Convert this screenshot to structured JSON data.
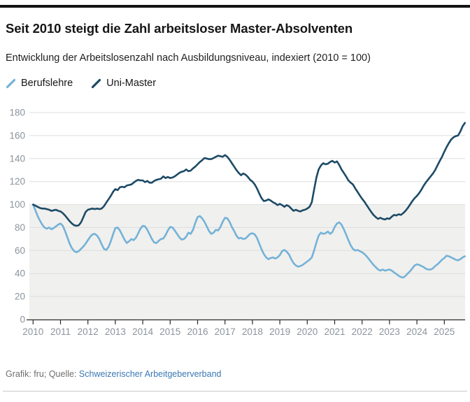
{
  "header": {
    "title": "Seit 2010 steigt die Zahl arbeitsloser Master-Absolventen",
    "subtitle": "Entwicklung der Arbeitslosenzahl nach Ausbildungsniveau, indexiert (2010 = 100)"
  },
  "legend": [
    {
      "label": "Berufslehre",
      "color": "#74b2d8"
    },
    {
      "label": "Uni-Master",
      "color": "#1d4a66"
    }
  ],
  "footer": {
    "credit": "Grafik: fru; Quelle: ",
    "source_link": "Schweizerischer Arbeitgeberverband",
    "link_color": "#3b78b5"
  },
  "chart_data": {
    "type": "line",
    "title": "Entwicklung der Arbeitslosenzahl nach Ausbildungsniveau, indexiert (2010 = 100)",
    "xlabel": "",
    "ylabel": "",
    "x_unit": "months since 2010-01",
    "x_ticks": [
      2010,
      2011,
      2012,
      2013,
      2014,
      2015,
      2016,
      2017,
      2018,
      2019,
      2020,
      2021,
      2022,
      2023,
      2024,
      2025
    ],
    "ylim": [
      0,
      180
    ],
    "y_ticks": [
      0,
      20,
      40,
      60,
      80,
      100,
      120,
      140,
      160,
      180
    ],
    "grid": true,
    "grid_color": "#dedede",
    "axis_color": "#2a2a2a",
    "band": {
      "from": 0,
      "to": 100,
      "color": "#f0f0ee"
    },
    "legend_position": "top-left",
    "series": [
      {
        "name": "Berufslehre",
        "color": "#74b2d8",
        "values": [
          100,
          95,
          90,
          86,
          82.5,
          80,
          79,
          80,
          78.5,
          79.5,
          81,
          82.5,
          83.5,
          81.5,
          77,
          71.5,
          66,
          62,
          59.5,
          58.5,
          59.5,
          61.5,
          63.5,
          66,
          69,
          72,
          74,
          74.5,
          73,
          70,
          65.5,
          61.5,
          60.5,
          63,
          68,
          74,
          79.5,
          80,
          77.5,
          73.5,
          69.5,
          66.5,
          68,
          70,
          69,
          71,
          75,
          79,
          81.5,
          81,
          78,
          74,
          70,
          67,
          66.5,
          68.5,
          70,
          70.5,
          73.5,
          77.5,
          80.5,
          80,
          77.5,
          74.5,
          71.5,
          69.5,
          70,
          72,
          75.5,
          74.5,
          78,
          84,
          89,
          90,
          88,
          85,
          81,
          77,
          74.5,
          75.5,
          78,
          77.5,
          80.5,
          85,
          88.5,
          88,
          85,
          80.5,
          77,
          73,
          70.5,
          71,
          70,
          70.5,
          72.5,
          74.5,
          75,
          74,
          71,
          66,
          61,
          57,
          54,
          52.5,
          53.5,
          54,
          53,
          54,
          56,
          59.5,
          60.5,
          59,
          56.5,
          52.5,
          49,
          47,
          46,
          46.5,
          47.5,
          49,
          50.5,
          52,
          54,
          60,
          67,
          73,
          75.5,
          74.5,
          75,
          76.5,
          74.5,
          76,
          80.5,
          83.5,
          84.5,
          82.5,
          78.5,
          74,
          69,
          64.5,
          61.5,
          60,
          60.5,
          59.5,
          58.5,
          57,
          55,
          52.5,
          50,
          47.5,
          45.5,
          43.5,
          42.5,
          43.5,
          42.5,
          43,
          43.5,
          42.5,
          41,
          39.5,
          38,
          37,
          36.5,
          38,
          40,
          42,
          44.5,
          47,
          48,
          47.5,
          46.5,
          45.5,
          44,
          43.5,
          43.5,
          44.5,
          46.5,
          48,
          50,
          52,
          53.5,
          55.5,
          55,
          54,
          53,
          52,
          51.5,
          52.5,
          54,
          55
        ]
      },
      {
        "name": "Uni-Master",
        "color": "#1d4a66",
        "values": [
          100,
          99,
          98,
          97,
          96.5,
          96.5,
          96,
          95.5,
          94.5,
          95,
          95.5,
          94.5,
          94,
          92.5,
          90.5,
          88,
          85.5,
          83.5,
          82,
          81.5,
          82,
          84.5,
          89,
          93.5,
          95.5,
          96,
          96.5,
          96,
          96.5,
          96,
          96.5,
          98.5,
          101.5,
          104.5,
          107.5,
          111,
          113.5,
          112.5,
          115,
          115.5,
          115,
          116.5,
          117,
          117.5,
          119,
          120.5,
          121.5,
          121,
          121,
          119.5,
          120.5,
          119,
          119,
          120.5,
          121.5,
          122,
          122.5,
          124.5,
          123,
          124,
          123,
          123.5,
          124.5,
          126,
          127.5,
          128.5,
          129,
          130.5,
          129,
          129.5,
          131.5,
          133,
          135,
          137,
          138.5,
          140.5,
          140,
          139.5,
          139.5,
          140.5,
          141.5,
          142.5,
          142,
          141.5,
          143,
          141.5,
          139,
          136,
          133,
          130,
          127.5,
          125.5,
          127,
          126,
          124,
          121.5,
          120,
          117.5,
          114,
          109.5,
          105.5,
          103,
          103.5,
          104.5,
          103.5,
          102,
          101,
          99.5,
          100.5,
          99.5,
          98,
          99.5,
          98.5,
          96.5,
          94.5,
          95.5,
          94.5,
          94,
          95,
          95.5,
          96.5,
          98,
          102,
          113,
          123.5,
          130.5,
          134,
          136,
          135,
          135.5,
          137,
          138,
          136.5,
          137.5,
          134.5,
          130.5,
          127.5,
          124.5,
          121,
          119,
          117.5,
          114,
          111,
          108,
          105,
          102.5,
          99.5,
          96.5,
          93.5,
          91,
          89,
          87.5,
          88.5,
          87.5,
          87,
          88,
          87.5,
          89.5,
          91,
          90.5,
          91.5,
          91,
          92.5,
          94.5,
          97,
          100,
          103,
          105.5,
          107.5,
          110,
          113,
          116.5,
          119.5,
          122,
          124.5,
          127,
          130,
          134,
          138,
          141.5,
          146,
          150,
          153.5,
          156.5,
          158.5,
          159.5,
          160,
          163.5,
          168,
          171
        ]
      }
    ]
  }
}
